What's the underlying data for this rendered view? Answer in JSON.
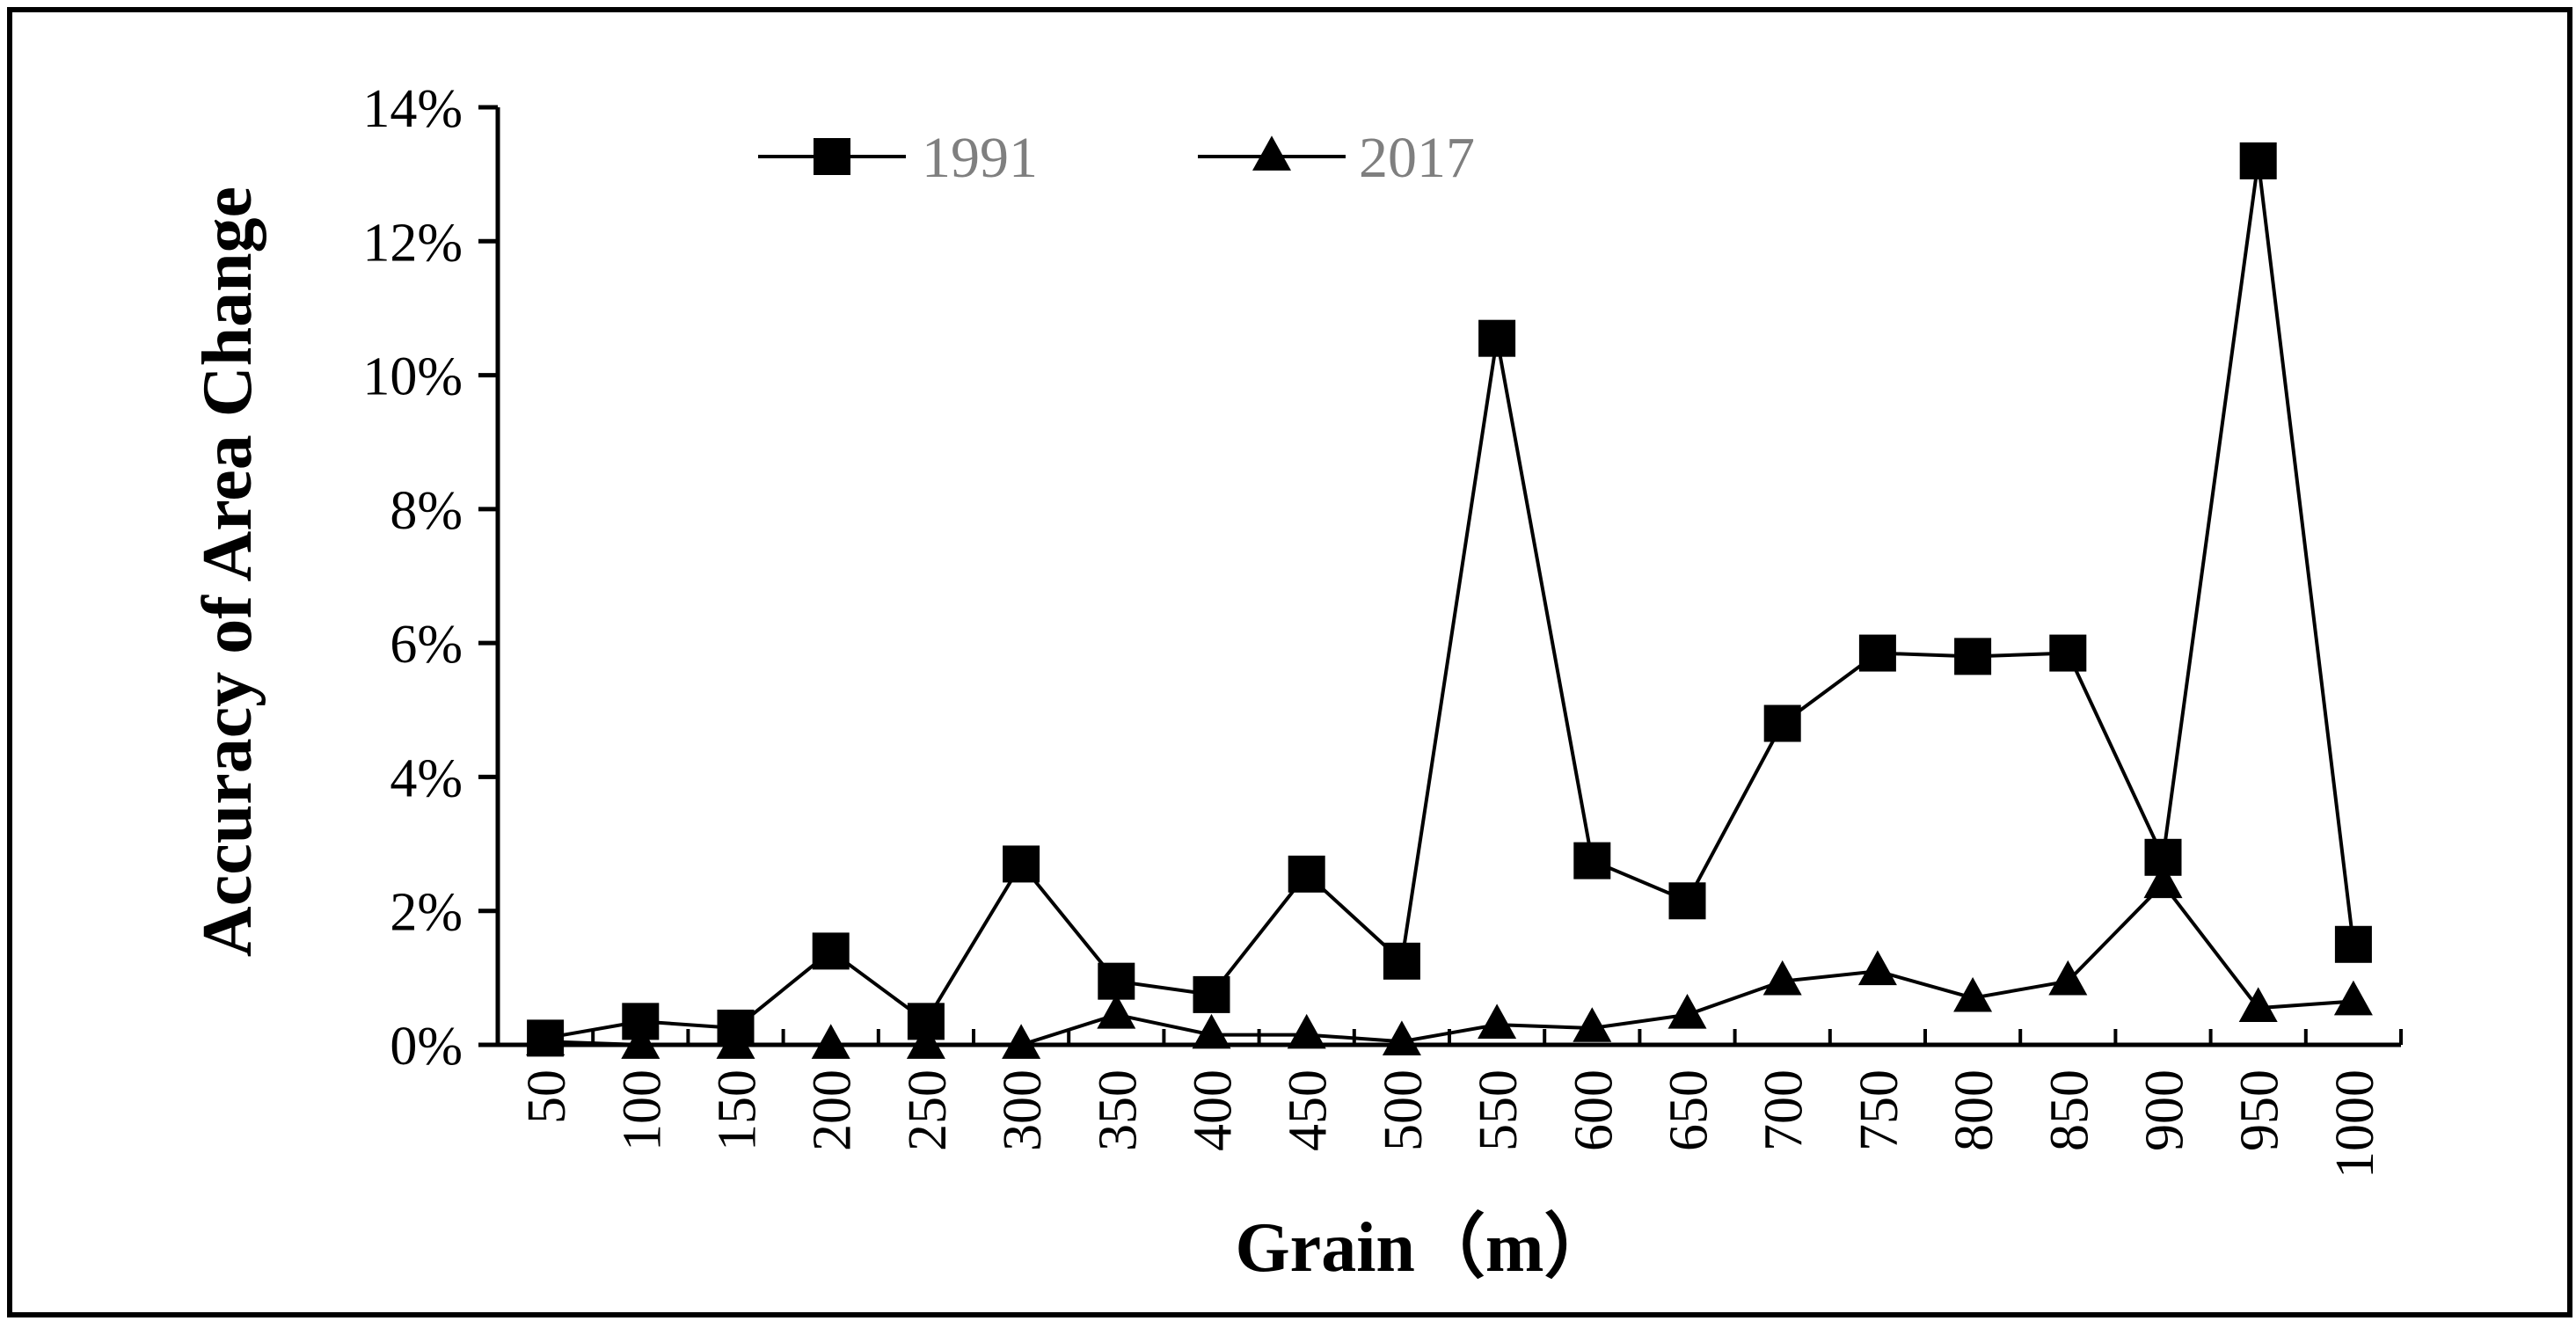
{
  "chart_data": {
    "type": "line",
    "xlabel": "Grain（m）",
    "ylabel": "Accuracy of Area Change",
    "categories": [
      "50",
      "100",
      "150",
      "200",
      "250",
      "300",
      "350",
      "400",
      "450",
      "500",
      "550",
      "600",
      "650",
      "700",
      "750",
      "800",
      "850",
      "900",
      "950",
      "1000"
    ],
    "yticks": [
      "0%",
      "2%",
      "4%",
      "6%",
      "8%",
      "10%",
      "12%",
      "14%"
    ],
    "ylim": [
      0,
      14
    ],
    "y_unit": "%",
    "grid": false,
    "legend_position": "top",
    "series": [
      {
        "name": "1991",
        "marker": "square",
        "color": "#000000",
        "values": [
          0.1,
          0.35,
          0.25,
          1.4,
          0.35,
          2.7,
          0.95,
          0.75,
          2.55,
          1.25,
          10.55,
          2.75,
          2.15,
          4.8,
          5.85,
          5.8,
          5.85,
          2.8,
          13.2,
          1.5
        ]
      },
      {
        "name": "2017",
        "marker": "triangle",
        "color": "#000000",
        "values": [
          0.05,
          0.0,
          0.0,
          0.0,
          0.0,
          0.0,
          0.45,
          0.15,
          0.15,
          0.05,
          0.3,
          0.25,
          0.45,
          0.95,
          1.1,
          0.7,
          0.95,
          2.4,
          0.55,
          0.65
        ]
      }
    ]
  }
}
